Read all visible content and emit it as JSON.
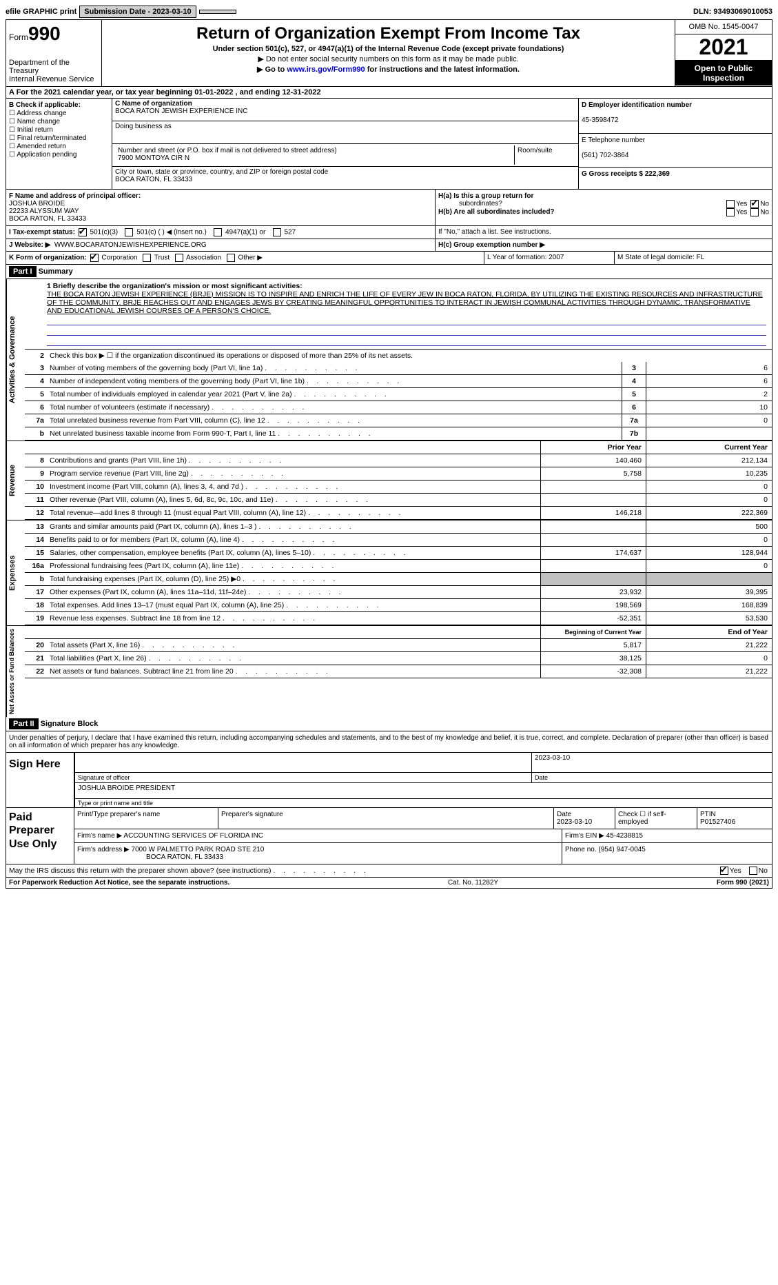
{
  "topbar": {
    "efile": "efile GRAPHIC print",
    "submission_label": "Submission Date - 2023-03-10",
    "dln_label": "DLN: 93493069010053"
  },
  "header": {
    "form_prefix": "Form",
    "form_number": "990",
    "dept": "Department of the Treasury",
    "irs": "Internal Revenue Service",
    "title": "Return of Organization Exempt From Income Tax",
    "sub1": "Under section 501(c), 527, or 4947(a)(1) of the Internal Revenue Code (except private foundations)",
    "sub2": "▶ Do not enter social security numbers on this form as it may be made public.",
    "sub3_pre": "▶ Go to ",
    "sub3_link": "www.irs.gov/Form990",
    "sub3_post": " for instructions and the latest information.",
    "omb": "OMB No. 1545-0047",
    "year": "2021",
    "open": "Open to Public Inspection"
  },
  "rowA": "A For the 2021 calendar year, or tax year beginning 01-01-2022    , and ending 12-31-2022",
  "colB": {
    "title": "B Check if applicable:",
    "items": [
      "Address change",
      "Name change",
      "Initial return",
      "Final return/terminated",
      "Amended return",
      "Application pending"
    ]
  },
  "colC": {
    "name_label": "C Name of organization",
    "name": "BOCA RATON JEWISH EXPERIENCE INC",
    "dba_label": "Doing business as",
    "street_label": "Number and street (or P.O. box if mail is not delivered to street address)",
    "room_label": "Room/suite",
    "street": "7900 MONTOYA CIR N",
    "city_label": "City or town, state or province, country, and ZIP or foreign postal code",
    "city": "BOCA RATON, FL  33433"
  },
  "colD": {
    "ein_label": "D Employer identification number",
    "ein": "45-3598472",
    "phone_label": "E Telephone number",
    "phone": "(561) 702-3864",
    "gross_label": "G Gross receipts $ 222,369"
  },
  "rowF": {
    "label": "F  Name and address of principal officer:",
    "name": "JOSHUA BROIDE",
    "addr1": "22233 ALYSSUM WAY",
    "addr2": "BOCA RATON, FL  33433"
  },
  "rowH": {
    "ha": "H(a)  Is this a group return for",
    "ha2": "subordinates?",
    "hb": "H(b)  Are all subordinates included?",
    "hb2": "If \"No,\" attach a list. See instructions.",
    "hc": "H(c)  Group exemption number ▶",
    "yes": "Yes",
    "no": "No"
  },
  "rowI": {
    "label": "I    Tax-exempt status:",
    "opts": [
      "501(c)(3)",
      "501(c) (  ) ◀ (insert no.)",
      "4947(a)(1) or",
      "527"
    ]
  },
  "rowJ": {
    "label": "J   Website: ▶",
    "val": "WWW.BOCARATONJEWISHEXPERIENCE.ORG"
  },
  "rowK": {
    "label": "K Form of organization:",
    "opts": [
      "Corporation",
      "Trust",
      "Association",
      "Other ▶"
    ]
  },
  "rowL": "L Year of formation: 2007",
  "rowM": "M State of legal domicile: FL",
  "part1": {
    "header": "Part I",
    "title": "Summary",
    "side1": "Activities & Governance",
    "side2": "Revenue",
    "side3": "Expenses",
    "side4": "Net Assets or Fund Balances",
    "line1_label": "1  Briefly describe the organization's mission or most significant activities:",
    "mission": "THE BOCA RATON JEWISH EXPERIENCE (BRJE) MISSION IS TO INSPIRE AND ENRICH THE LIFE OF EVERY JEW IN BOCA RATON, FLORIDA, BY UTILIZING THE EXISTING RESOURCES AND INFRASTRUCTURE OF THE COMMUNITY. BRJE REACHES OUT AND ENGAGES JEWS BY CREATING MEANINGFUL OPPORTUNITIES TO INTERACT IN JEWISH COMMUNAL ACTIVITIES THROUGH DYNAMIC, TRANSFORMATIVE AND EDUCATIONAL JEWISH COURSES OF A PERSON'S CHOICE.",
    "line2": "Check this box ▶ ☐  if the organization discontinued its operations or disposed of more than 25% of its net assets.",
    "lines_gov": [
      {
        "n": "3",
        "d": "Number of voting members of the governing body (Part VI, line 1a)",
        "b": "3",
        "v": "6"
      },
      {
        "n": "4",
        "d": "Number of independent voting members of the governing body (Part VI, line 1b)",
        "b": "4",
        "v": "6"
      },
      {
        "n": "5",
        "d": "Total number of individuals employed in calendar year 2021 (Part V, line 2a)",
        "b": "5",
        "v": "2"
      },
      {
        "n": "6",
        "d": "Total number of volunteers (estimate if necessary)",
        "b": "6",
        "v": "10"
      },
      {
        "n": "7a",
        "d": "Total unrelated business revenue from Part VIII, column (C), line 12",
        "b": "7a",
        "v": "0"
      },
      {
        "n": "b",
        "d": "Net unrelated business taxable income from Form 990-T, Part I, line 11",
        "b": "7b",
        "v": ""
      }
    ],
    "col_prior": "Prior Year",
    "col_current": "Current Year",
    "lines_rev": [
      {
        "n": "8",
        "d": "Contributions and grants (Part VIII, line 1h)",
        "p": "140,460",
        "c": "212,134"
      },
      {
        "n": "9",
        "d": "Program service revenue (Part VIII, line 2g)",
        "p": "5,758",
        "c": "10,235"
      },
      {
        "n": "10",
        "d": "Investment income (Part VIII, column (A), lines 3, 4, and 7d )",
        "p": "",
        "c": "0"
      },
      {
        "n": "11",
        "d": "Other revenue (Part VIII, column (A), lines 5, 6d, 8c, 9c, 10c, and 11e)",
        "p": "",
        "c": "0"
      },
      {
        "n": "12",
        "d": "Total revenue—add lines 8 through 11 (must equal Part VIII, column (A), line 12)",
        "p": "146,218",
        "c": "222,369"
      }
    ],
    "lines_exp": [
      {
        "n": "13",
        "d": "Grants and similar amounts paid (Part IX, column (A), lines 1–3 )",
        "p": "",
        "c": "500"
      },
      {
        "n": "14",
        "d": "Benefits paid to or for members (Part IX, column (A), line 4)",
        "p": "",
        "c": "0"
      },
      {
        "n": "15",
        "d": "Salaries, other compensation, employee benefits (Part IX, column (A), lines 5–10)",
        "p": "174,637",
        "c": "128,944"
      },
      {
        "n": "16a",
        "d": "Professional fundraising fees (Part IX, column (A), line 11e)",
        "p": "",
        "c": "0"
      },
      {
        "n": "b",
        "d": "Total fundraising expenses (Part IX, column (D), line 25) ▶0",
        "p": "shaded",
        "c": "shaded"
      },
      {
        "n": "17",
        "d": "Other expenses (Part IX, column (A), lines 11a–11d, 11f–24e)",
        "p": "23,932",
        "c": "39,395"
      },
      {
        "n": "18",
        "d": "Total expenses. Add lines 13–17 (must equal Part IX, column (A), line 25)",
        "p": "198,569",
        "c": "168,839"
      },
      {
        "n": "19",
        "d": "Revenue less expenses. Subtract line 18 from line 12",
        "p": "-52,351",
        "c": "53,530"
      }
    ],
    "col_begin": "Beginning of Current Year",
    "col_end": "End of Year",
    "lines_net": [
      {
        "n": "20",
        "d": "Total assets (Part X, line 16)",
        "p": "5,817",
        "c": "21,222"
      },
      {
        "n": "21",
        "d": "Total liabilities (Part X, line 26)",
        "p": "38,125",
        "c": "0"
      },
      {
        "n": "22",
        "d": "Net assets or fund balances. Subtract line 21 from line 20",
        "p": "-32,308",
        "c": "21,222"
      }
    ]
  },
  "part2": {
    "header": "Part II",
    "title": "Signature Block",
    "intro": "Under penalties of perjury, I declare that I have examined this return, including accompanying schedules and statements, and to the best of my knowledge and belief, it is true, correct, and complete. Declaration of preparer (other than officer) is based on all information of which preparer has any knowledge.",
    "sign_here": "Sign Here",
    "sig_officer": "Signature of officer",
    "sig_date": "Date",
    "sig_date_val": "2023-03-10",
    "sig_name": "JOSHUA BROIDE  PRESIDENT",
    "sig_name_label": "Type or print name and title",
    "paid": "Paid Preparer Use Only",
    "prep_name_label": "Print/Type preparer's name",
    "prep_sig_label": "Preparer's signature",
    "prep_date_label": "Date",
    "prep_date": "2023-03-10",
    "prep_check": "Check ☐ if self-employed",
    "ptin_label": "PTIN",
    "ptin": "P01527406",
    "firm_name_label": "Firm's name    ▶",
    "firm_name": "ACCOUNTING SERVICES OF FLORIDA INC",
    "firm_ein_label": "Firm's EIN ▶",
    "firm_ein": "45-4238815",
    "firm_addr_label": "Firm's address ▶",
    "firm_addr1": "7000 W PALMETTO PARK ROAD STE 210",
    "firm_addr2": "BOCA RATON, FL  33433",
    "firm_phone_label": "Phone no.",
    "firm_phone": "(954) 947-0045",
    "discuss": "May the IRS discuss this return with the preparer shown above? (see instructions)",
    "yes": "Yes",
    "no": "No"
  },
  "footer": {
    "left": "For Paperwork Reduction Act Notice, see the separate instructions.",
    "mid": "Cat. No. 11282Y",
    "right": "Form 990 (2021)"
  }
}
